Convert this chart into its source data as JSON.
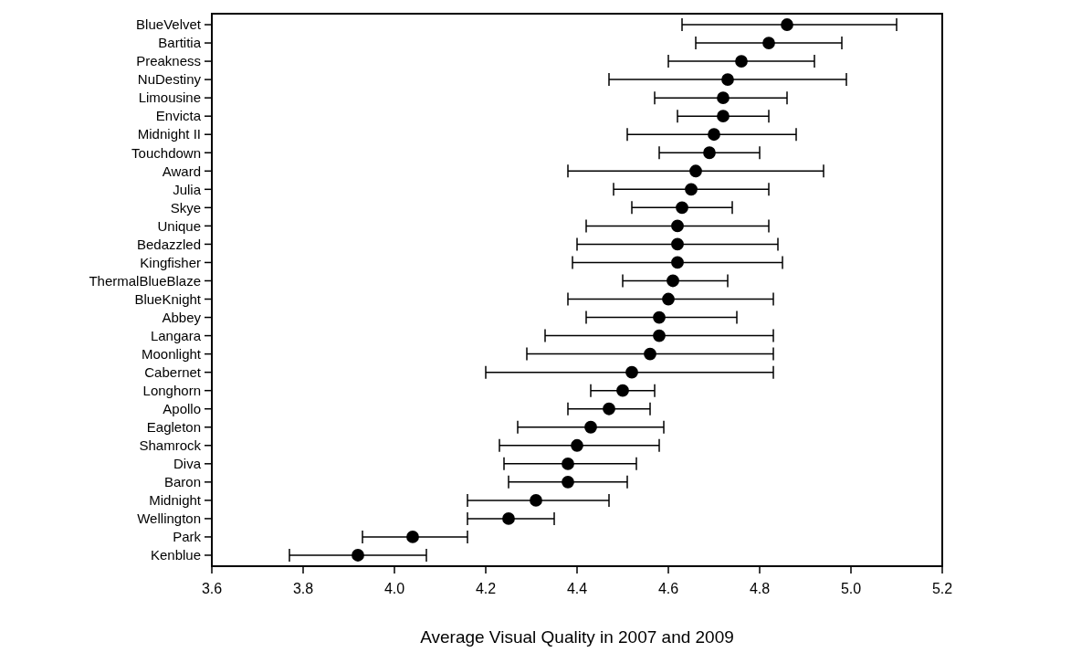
{
  "chart_data": {
    "type": "scatter",
    "orientation": "horizontal",
    "xlabel": "Average Visual Quality in 2007 and 2009",
    "categories": [
      "BlueVelvet",
      "Bartitia",
      "Preakness",
      "NuDestiny",
      "Limousine",
      "Envicta",
      "Midnight II",
      "Touchdown",
      "Award",
      "Julia",
      "Skye",
      "Unique",
      "Bedazzled",
      "Kingfisher",
      "ThermalBlueBlaze",
      "BlueKnight",
      "Abbey",
      "Langara",
      "Moonlight",
      "Cabernet",
      "Longhorn",
      "Apollo",
      "Eagleton",
      "Shamrock",
      "Diva",
      "Baron",
      "Midnight",
      "Wellington",
      "Park",
      "Kenblue"
    ],
    "color": "#000000",
    "values": [
      4.86,
      4.82,
      4.76,
      4.73,
      4.72,
      4.72,
      4.7,
      4.69,
      4.66,
      4.65,
      4.63,
      4.62,
      4.62,
      4.62,
      4.61,
      4.6,
      4.58,
      4.58,
      4.56,
      4.52,
      4.5,
      4.47,
      4.43,
      4.4,
      4.38,
      4.38,
      4.31,
      4.25,
      4.04,
      3.92
    ],
    "errors": [
      [
        4.63,
        5.1
      ],
      [
        4.66,
        4.98
      ],
      [
        4.6,
        4.92
      ],
      [
        4.47,
        4.99
      ],
      [
        4.57,
        4.86
      ],
      [
        4.62,
        4.82
      ],
      [
        4.51,
        4.88
      ],
      [
        4.58,
        4.8
      ],
      [
        4.38,
        4.94
      ],
      [
        4.48,
        4.82
      ],
      [
        4.52,
        4.74
      ],
      [
        4.42,
        4.82
      ],
      [
        4.4,
        4.84
      ],
      [
        4.39,
        4.85
      ],
      [
        4.5,
        4.73
      ],
      [
        4.38,
        4.83
      ],
      [
        4.42,
        4.75
      ],
      [
        4.33,
        4.83
      ],
      [
        4.29,
        4.83
      ],
      [
        4.2,
        4.83
      ],
      [
        4.43,
        4.57
      ],
      [
        4.38,
        4.56
      ],
      [
        4.27,
        4.59
      ],
      [
        4.23,
        4.58
      ],
      [
        4.24,
        4.53
      ],
      [
        4.25,
        4.51
      ],
      [
        4.16,
        4.47
      ],
      [
        4.16,
        4.35
      ],
      [
        3.93,
        4.16
      ],
      [
        3.77,
        4.07
      ]
    ],
    "xlim": [
      3.6,
      5.2
    ],
    "xticks": [
      3.6,
      3.8,
      {
        "value": 4,
        "label": "4.0"
      },
      4.2,
      4.4,
      4.6,
      4.8,
      {
        "value": 5,
        "label": "5.0"
      },
      5.2
    ],
    "marker": "circle",
    "grid": false
  }
}
